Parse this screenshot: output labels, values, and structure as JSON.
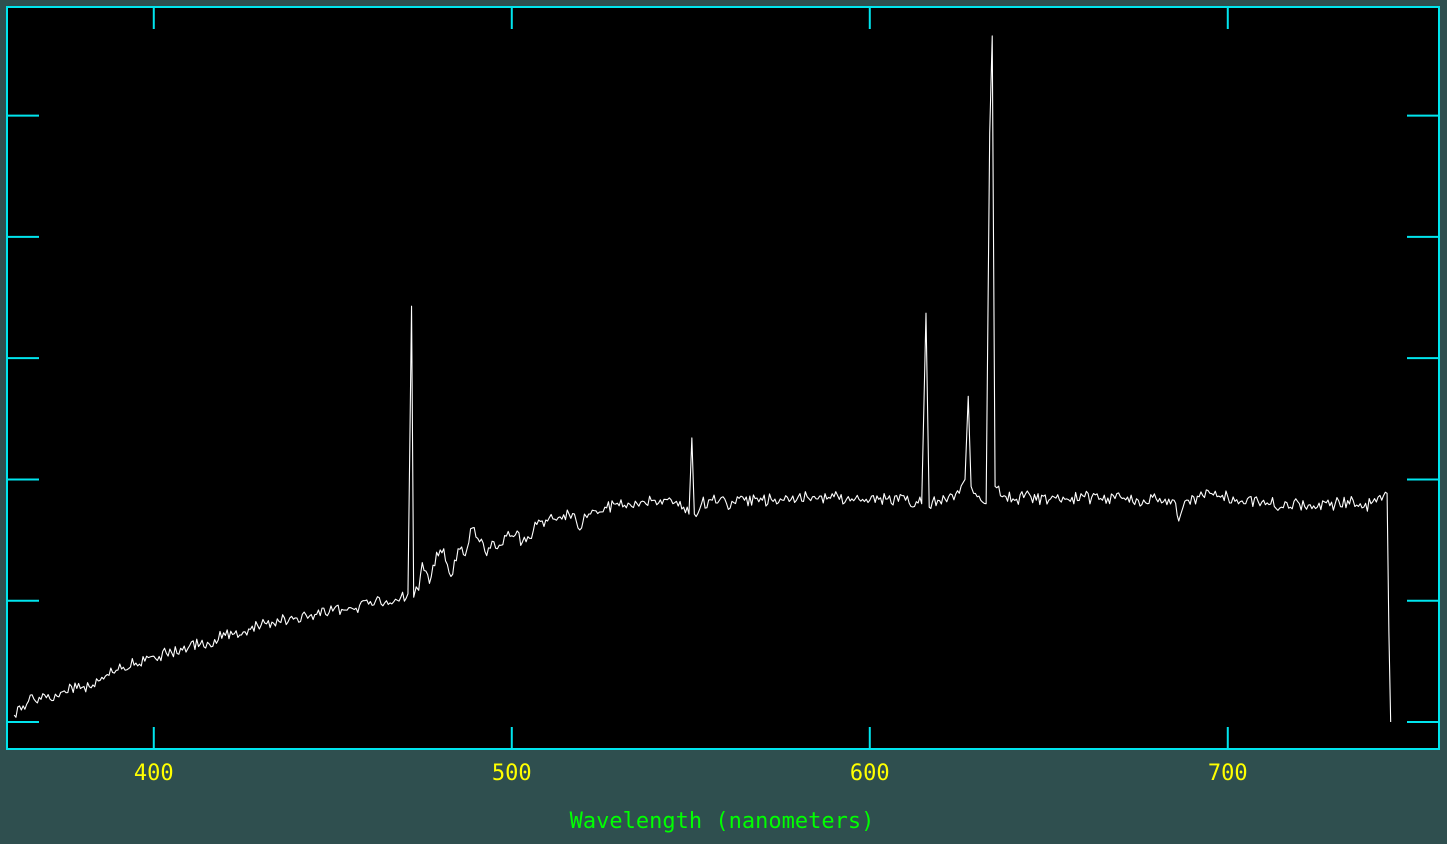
{
  "colors": {
    "background": "#2f4f4f",
    "plot_background": "#000000",
    "frame": "#00e5ee",
    "tick_labels": "#ffff00",
    "axis_title": "#00ff00",
    "spectrum": "#ffffff"
  },
  "chart_data": {
    "type": "line",
    "title": "",
    "xlabel": "Wavelength (nanometers)",
    "ylabel": "",
    "xlim": [
      359,
      759
    ],
    "ylim": [
      0,
      1
    ],
    "xticks": [
      400,
      500,
      600,
      700
    ],
    "xtick_labels": [
      "400",
      "500",
      "600",
      "700"
    ],
    "yticks": [
      0.0,
      0.175,
      0.35,
      0.525,
      0.7,
      0.875
    ],
    "ytick_labels": [],
    "grid": false,
    "legend": "none",
    "series": [
      {
        "values_note": "",
        "x": [
          361,
          365,
          370,
          375,
          380,
          385,
          390,
          395,
          400,
          405,
          410,
          415,
          420,
          425,
          430,
          435,
          440,
          445,
          450,
          455,
          460,
          465,
          469,
          471,
          472,
          472.6,
          473.3,
          474,
          475,
          477,
          479,
          481,
          483,
          485,
          487,
          489,
          491,
          493,
          495,
          497,
          499,
          501,
          503,
          505,
          507,
          510,
          513,
          516,
          518,
          519.5,
          520.3,
          521,
          523,
          526,
          530,
          535,
          540,
          545,
          548,
          549.5,
          550.3,
          551,
          553,
          556,
          558,
          559,
          560,
          565,
          570,
          575,
          580,
          585,
          590,
          595,
          600,
          605,
          610,
          613,
          614.5,
          615.7,
          616.6,
          617.5,
          619,
          622,
          625,
          626.6,
          627.5,
          628.3,
          629,
          630,
          631,
          632.5,
          633.5,
          634.2,
          635,
          637,
          640,
          645,
          650,
          655,
          660,
          665,
          670,
          675,
          680,
          685,
          686.3,
          687.5,
          689,
          692,
          695,
          700,
          705,
          710,
          715,
          720,
          725,
          730,
          735,
          738,
          740,
          743,
          744.5,
          745,
          745.5
        ],
        "y": [
          0.01,
          0.03,
          0.035,
          0.045,
          0.05,
          0.06,
          0.075,
          0.085,
          0.095,
          0.1,
          0.11,
          0.115,
          0.125,
          0.13,
          0.14,
          0.145,
          0.15,
          0.155,
          0.16,
          0.165,
          0.17,
          0.175,
          0.18,
          0.185,
          0.6,
          0.18,
          0.195,
          0.19,
          0.23,
          0.2,
          0.245,
          0.25,
          0.21,
          0.25,
          0.24,
          0.28,
          0.26,
          0.24,
          0.26,
          0.255,
          0.275,
          0.27,
          0.26,
          0.265,
          0.285,
          0.29,
          0.295,
          0.3,
          0.29,
          0.28,
          0.3,
          0.295,
          0.305,
          0.31,
          0.312,
          0.315,
          0.32,
          0.315,
          0.31,
          0.3,
          0.41,
          0.3,
          0.315,
          0.32,
          0.32,
          0.325,
          0.315,
          0.32,
          0.32,
          0.322,
          0.325,
          0.322,
          0.325,
          0.322,
          0.32,
          0.322,
          0.32,
          0.318,
          0.315,
          0.59,
          0.31,
          0.318,
          0.32,
          0.325,
          0.33,
          0.35,
          0.47,
          0.34,
          0.33,
          0.325,
          0.32,
          0.315,
          0.85,
          0.99,
          0.34,
          0.325,
          0.322,
          0.325,
          0.32,
          0.322,
          0.325,
          0.32,
          0.325,
          0.32,
          0.322,
          0.32,
          0.29,
          0.31,
          0.32,
          0.325,
          0.33,
          0.325,
          0.315,
          0.32,
          0.31,
          0.315,
          0.31,
          0.315,
          0.32,
          0.31,
          0.315,
          0.32,
          0.33,
          0.13,
          0.0
        ]
      }
    ]
  }
}
